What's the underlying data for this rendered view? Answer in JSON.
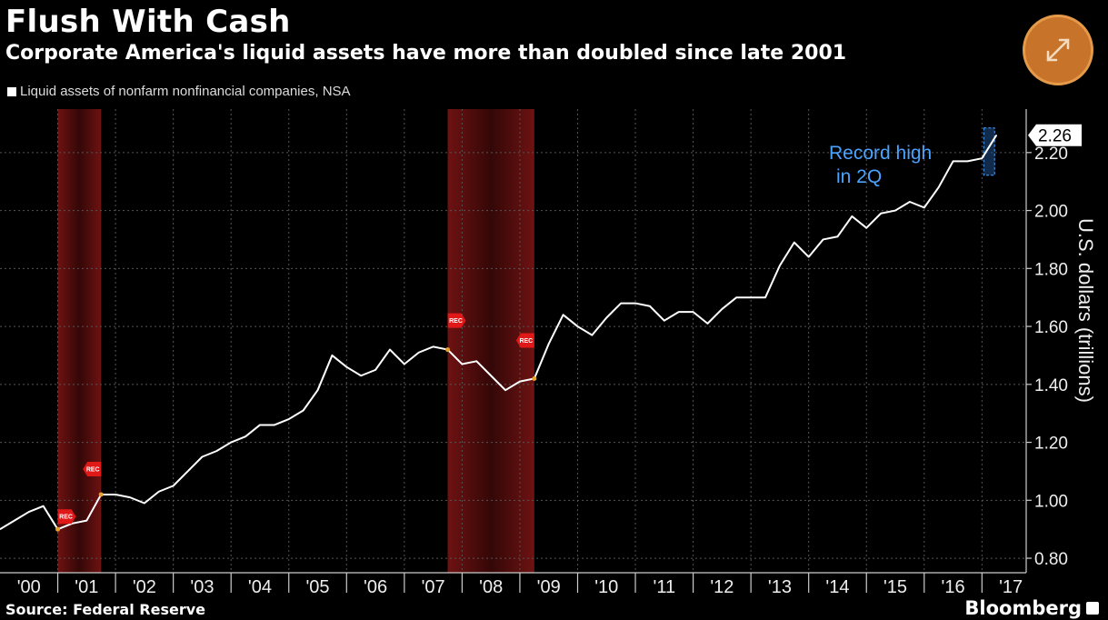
{
  "header": {
    "title": "Flush With Cash",
    "subtitle": "Corporate America's liquid assets have more than doubled since late 2001"
  },
  "footer": {
    "source": "Source: Federal Reserve",
    "brand": "Bloomberg"
  },
  "icons": {
    "expand": "expand-icon"
  },
  "colors": {
    "background": "#000000",
    "line": "#ffffff",
    "recession": "#8b1a1a",
    "recession_marker": "#e01818",
    "annotation": "#4aa3ff",
    "expand_button": "#c8732a"
  },
  "chart_data": {
    "type": "line",
    "title": "Flush With Cash",
    "subtitle": "Corporate America's liquid assets have more than doubled since late 2001",
    "legend": "Liquid assets of nonfarm nonfinancial companies, NSA",
    "ylabel": "U.S. dollars (trillions)",
    "ylim": [
      0.75,
      2.35
    ],
    "yticks": [
      "0.80",
      "1.00",
      "1.20",
      "1.40",
      "1.60",
      "1.80",
      "2.00",
      "2.20"
    ],
    "ytick_values": [
      0.8,
      1.0,
      1.2,
      1.4,
      1.6,
      1.8,
      2.0,
      2.2
    ],
    "xlim": [
      2000.0,
      2017.75
    ],
    "xtick_labels": [
      "'00",
      "'01",
      "'02",
      "'03",
      "'04",
      "'05",
      "'06",
      "'07",
      "'08",
      "'09",
      "'10",
      "'11",
      "'12",
      "'13",
      "'14",
      "'15",
      "'16",
      "'17"
    ],
    "grid": true,
    "last_value_label": "2.26",
    "recession_marker_label": "REC",
    "recessions": [
      {
        "start": 2001.0,
        "end": 2001.75
      },
      {
        "start": 2007.75,
        "end": 2009.25
      }
    ],
    "annotation": {
      "lines": [
        "Record high",
        "in 2Q"
      ]
    },
    "series": [
      {
        "name": "Liquid assets of nonfarm nonfinancial companies, NSA",
        "x": [
          2000.0,
          2000.25,
          2000.5,
          2000.75,
          2001.0,
          2001.25,
          2001.5,
          2001.75,
          2002.0,
          2002.25,
          2002.5,
          2002.75,
          2003.0,
          2003.25,
          2003.5,
          2003.75,
          2004.0,
          2004.25,
          2004.5,
          2004.75,
          2005.0,
          2005.25,
          2005.5,
          2005.75,
          2006.0,
          2006.25,
          2006.5,
          2006.75,
          2007.0,
          2007.25,
          2007.5,
          2007.75,
          2008.0,
          2008.25,
          2008.5,
          2008.75,
          2009.0,
          2009.25,
          2009.5,
          2009.75,
          2010.0,
          2010.25,
          2010.5,
          2010.75,
          2011.0,
          2011.25,
          2011.5,
          2011.75,
          2012.0,
          2012.25,
          2012.5,
          2012.75,
          2013.0,
          2013.25,
          2013.5,
          2013.75,
          2014.0,
          2014.25,
          2014.5,
          2014.75,
          2015.0,
          2015.25,
          2015.5,
          2015.75,
          2016.0,
          2016.25,
          2016.5,
          2016.75,
          2017.0,
          2017.25
        ],
        "values": [
          0.9,
          0.93,
          0.96,
          0.98,
          0.9,
          0.92,
          0.93,
          1.02,
          1.02,
          1.01,
          0.99,
          1.03,
          1.05,
          1.1,
          1.15,
          1.17,
          1.2,
          1.22,
          1.26,
          1.26,
          1.28,
          1.31,
          1.38,
          1.5,
          1.46,
          1.43,
          1.45,
          1.52,
          1.47,
          1.51,
          1.53,
          1.52,
          1.47,
          1.48,
          1.43,
          1.38,
          1.41,
          1.42,
          1.54,
          1.64,
          1.6,
          1.57,
          1.63,
          1.68,
          1.68,
          1.67,
          1.62,
          1.65,
          1.65,
          1.61,
          1.66,
          1.7,
          1.7,
          1.7,
          1.81,
          1.89,
          1.84,
          1.9,
          1.91,
          1.98,
          1.94,
          1.99,
          2.0,
          2.03,
          2.01,
          2.08,
          2.17,
          2.17,
          2.18,
          2.26
        ]
      }
    ]
  }
}
